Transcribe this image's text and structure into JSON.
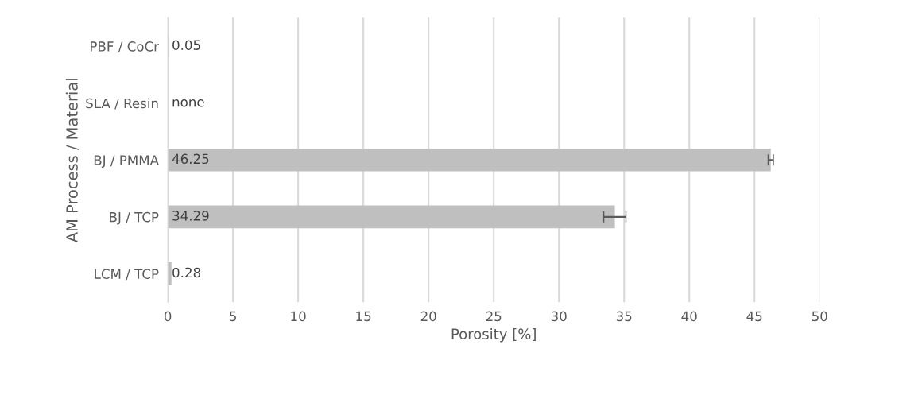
{
  "chart_data": {
    "type": "bar",
    "orientation": "horizontal",
    "xlabel": "Porosity [%]",
    "ylabel": "AM Process / Material",
    "categories": [
      "PBF / CoCr",
      "SLA / Resin",
      "BJ / PMMA",
      "BJ / TCP",
      "LCM / TCP"
    ],
    "values": [
      0.05,
      null,
      46.25,
      34.29,
      0.28
    ],
    "value_labels": [
      "0.05",
      "none",
      "46.25",
      "34.29",
      "0.28"
    ],
    "errors": [
      null,
      null,
      0.2,
      0.85,
      null
    ],
    "color": "#bfbfbf",
    "xlim": [
      0,
      50
    ],
    "xticks": [
      0,
      5,
      10,
      15,
      20,
      25,
      30,
      35,
      40,
      45,
      50
    ],
    "grid": "x",
    "legend": false
  }
}
